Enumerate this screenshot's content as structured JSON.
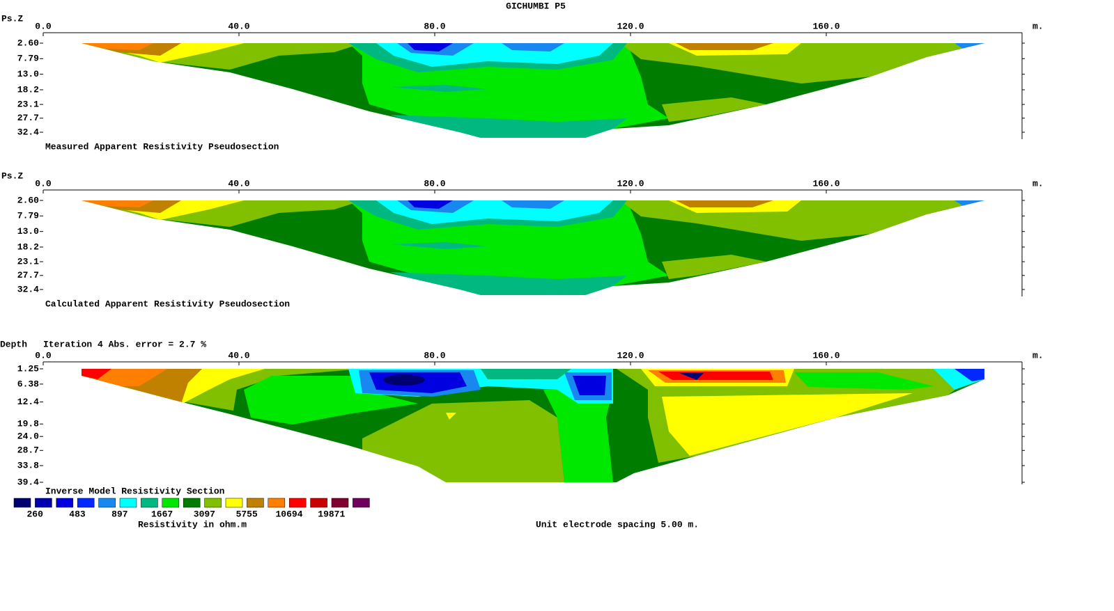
{
  "title": "GICHUMBI P5",
  "chart_data": [
    {
      "type": "pseudosection",
      "y_label": "Ps.Z",
      "x_unit": "m.",
      "caption": "Measured Apparent Resistivity Pseudosection",
      "xlim": [
        0,
        200
      ],
      "xticks": [
        {
          "value": 0,
          "label": "0.0"
        },
        {
          "value": 40,
          "label": "40.0"
        },
        {
          "value": 80,
          "label": "80.0"
        },
        {
          "value": 120,
          "label": "120.0"
        },
        {
          "value": 160,
          "label": "160.0"
        }
      ],
      "ylim": [
        2.6,
        32.4
      ],
      "yticks": [
        {
          "value": 2.6,
          "label": "2.60"
        },
        7.79,
        {
          "value": 13,
          "label": "13.0"
        },
        18.2,
        23.1,
        27.7,
        32.4
      ]
    },
    {
      "type": "pseudosection",
      "y_label": "Ps.Z",
      "x_unit": "m.",
      "caption": "Calculated Apparent Resistivity Pseudosection",
      "xlim": [
        0,
        200
      ],
      "xticks": [
        {
          "value": 0,
          "label": "0.0"
        },
        {
          "value": 40,
          "label": "40.0"
        },
        {
          "value": 80,
          "label": "80.0"
        },
        {
          "value": 120,
          "label": "120.0"
        },
        {
          "value": 160,
          "label": "160.0"
        }
      ],
      "ylim": [
        2.6,
        32.4
      ],
      "yticks": [
        {
          "value": 2.6,
          "label": "2.60"
        },
        7.79,
        {
          "value": 13,
          "label": "13.0"
        },
        18.2,
        23.1,
        27.7,
        32.4
      ]
    },
    {
      "type": "model-section",
      "y_label": "Depth",
      "x_unit": "m.",
      "note": "Iteration 4 Abs. error = 2.7 %",
      "caption": "Inverse Model Resistivity Section",
      "xlim": [
        0,
        200
      ],
      "xticks": [
        {
          "value": 0,
          "label": "0.0"
        },
        {
          "value": 40,
          "label": "40.0"
        },
        {
          "value": 80,
          "label": "80.0"
        },
        {
          "value": 120,
          "label": "120.0"
        },
        {
          "value": 160,
          "label": "160.0"
        }
      ],
      "ylim": [
        1.25,
        39.4
      ],
      "yticks": [
        1.25,
        6.38,
        12.4,
        19.8,
        {
          "value": 24,
          "label": "24.0"
        },
        28.7,
        33.8,
        39.4
      ]
    }
  ],
  "legend": {
    "colors": [
      "#000070",
      "#0000b0",
      "#0000e0",
      "#0028ff",
      "#1888f0",
      "#00ffff",
      "#00b880",
      "#00e800",
      "#007c00",
      "#80c000",
      "#ffff00",
      "#c08000",
      "#ff8000",
      "#ff0000",
      "#c80000",
      "#800030",
      "#700060"
    ],
    "values": [
      260,
      483,
      897,
      1667,
      3097,
      5755,
      10694,
      19871
    ],
    "unit_label": "Resistivity in ohm.m"
  },
  "footnote": "Unit electrode spacing 5.00 m."
}
